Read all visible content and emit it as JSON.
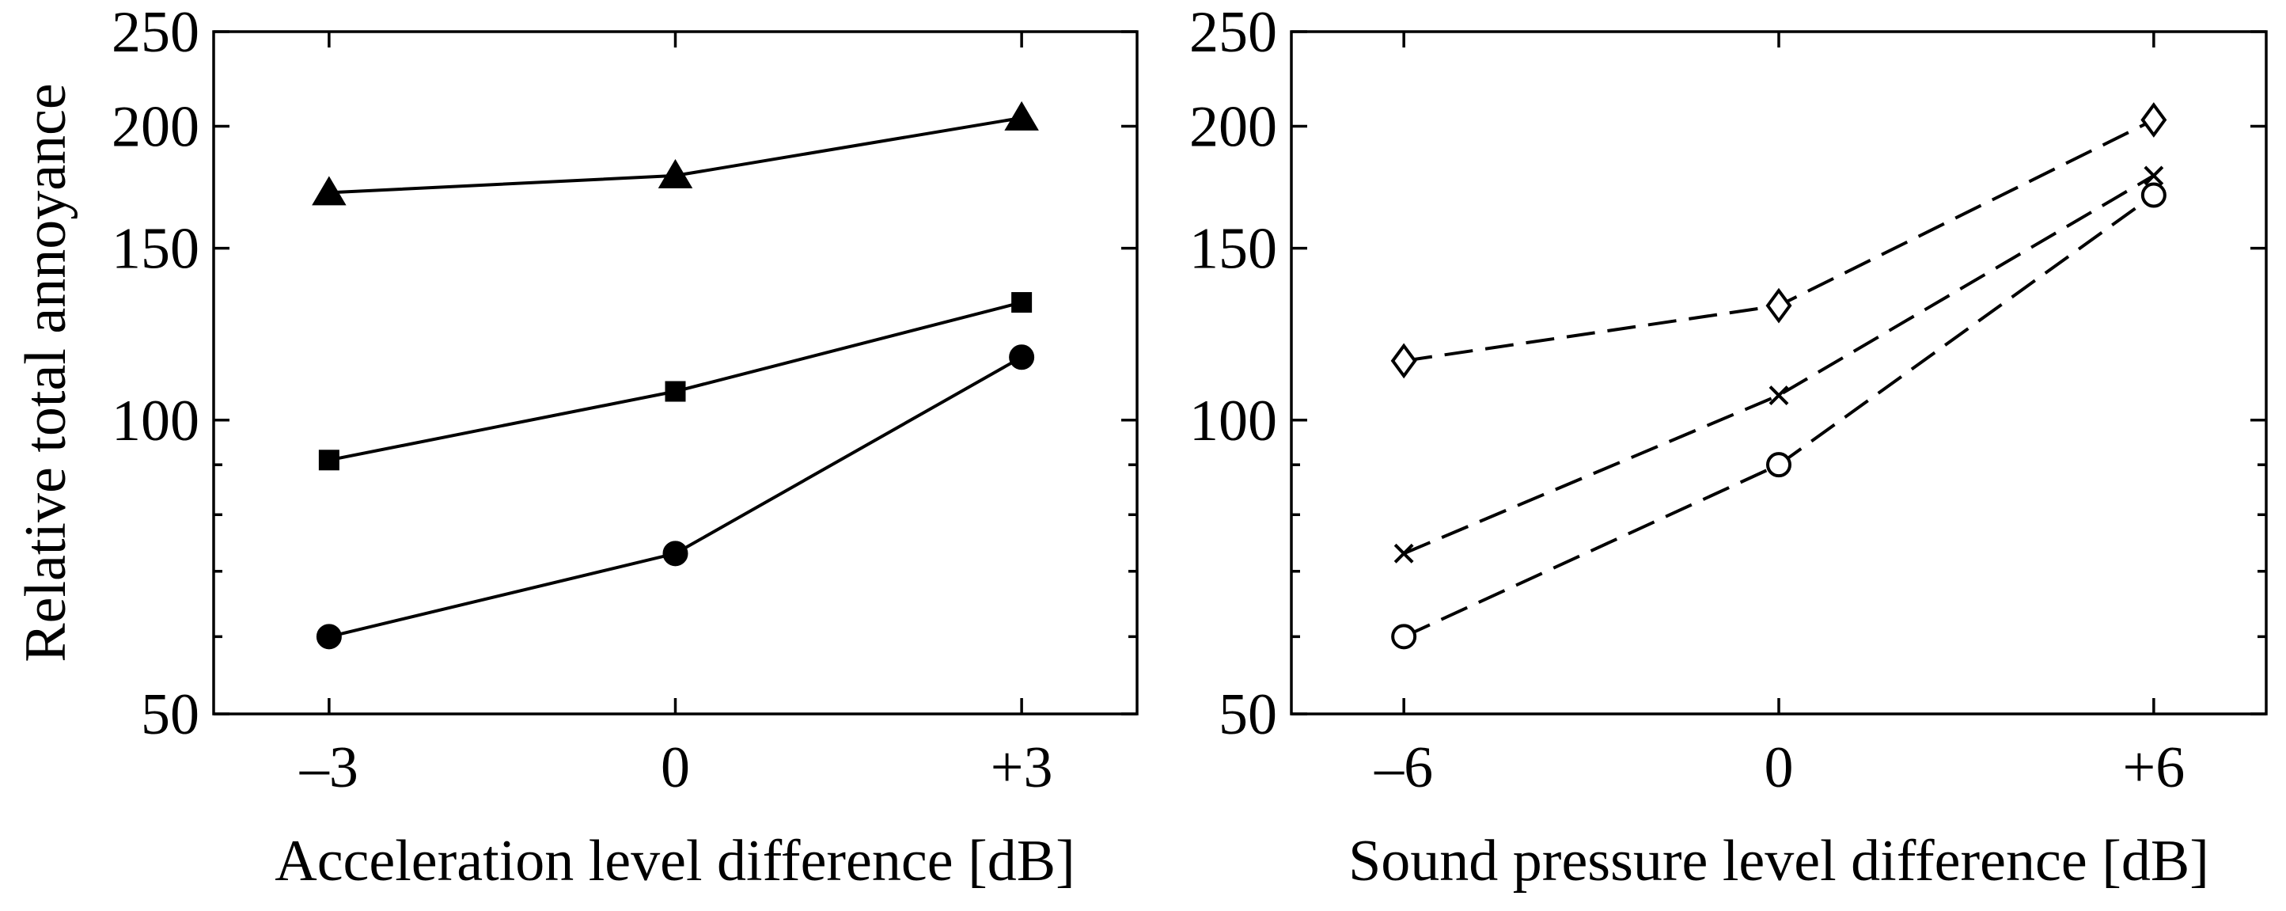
{
  "chart_data": [
    {
      "type": "line",
      "panel": "left",
      "title": "",
      "xlabel": "Acceleration level difference [dB]",
      "ylabel": "Relative total annoyance",
      "y_scale": "log",
      "ylim": [
        50,
        250
      ],
      "y_ticks": [
        50,
        100,
        150,
        200,
        250
      ],
      "y_tick_labels": [
        "50",
        "100",
        "150",
        "200",
        "250"
      ],
      "y_minor_ticks": [
        60,
        70,
        80,
        90
      ],
      "x": [
        -3,
        0,
        3
      ],
      "xlim": [
        -4,
        4
      ],
      "x_tick_labels": [
        "–3",
        "0",
        "+3"
      ],
      "grid": false,
      "series": [
        {
          "name": "triangle",
          "marker": "triangle-filled",
          "line": "solid",
          "values": [
            171,
            178,
            204
          ]
        },
        {
          "name": "square",
          "marker": "square-filled",
          "line": "solid",
          "values": [
            91,
            107,
            132
          ]
        },
        {
          "name": "circle",
          "marker": "circle-filled",
          "line": "solid",
          "values": [
            60,
            73,
            116
          ]
        }
      ]
    },
    {
      "type": "line",
      "panel": "right",
      "title": "",
      "xlabel": "Sound pressure level difference [dB]",
      "ylabel": "",
      "y_scale": "log",
      "ylim": [
        50,
        250
      ],
      "y_ticks": [
        50,
        100,
        150,
        200,
        250
      ],
      "y_tick_labels": [
        "50",
        "100",
        "150",
        "200",
        "250"
      ],
      "y_minor_ticks": [
        60,
        70,
        80,
        90
      ],
      "x": [
        -6,
        0,
        6
      ],
      "xlim": [
        -7.8,
        7.8
      ],
      "x_tick_labels": [
        "–6",
        "0",
        "+6"
      ],
      "grid": false,
      "series": [
        {
          "name": "diamond",
          "marker": "diamond-open",
          "line": "dashed",
          "values": [
            115,
            131,
            203
          ]
        },
        {
          "name": "cross",
          "marker": "x-cross",
          "line": "dashed",
          "values": [
            73,
            106,
            178
          ]
        },
        {
          "name": "circle-open",
          "marker": "circle-open",
          "line": "dashed",
          "values": [
            60,
            90,
            170
          ]
        }
      ]
    }
  ]
}
